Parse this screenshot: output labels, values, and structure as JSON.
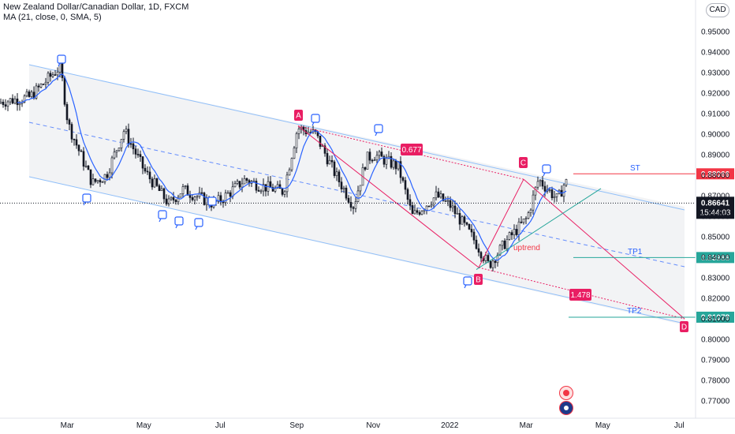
{
  "header": {
    "symbol_line": "New Zealand Dollar/Canadian Dollar, 1D, FXCM",
    "ma_line": "MA (21, close, 0, SMA, 5)"
  },
  "currency_button": "CAD",
  "price_axis": {
    "ticks": [
      "0.95000",
      "0.94000",
      "0.93000",
      "0.92000",
      "0.91000",
      "0.90000",
      "0.89000",
      "0.88000",
      "0.87000",
      "0.86000",
      "0.85000",
      "0.84000",
      "0.83000",
      "0.82000",
      "0.81000",
      "0.80000",
      "0.79000",
      "0.78000",
      "0.77000"
    ],
    "current_price": "0.86641",
    "countdown": "15:44:03",
    "st_price": "0.88066",
    "tp1_price": "0.83986",
    "tp2_price": "0.81078"
  },
  "time_axis": {
    "labels": [
      "Mar",
      "May",
      "Jul",
      "Sep",
      "Nov",
      "2022",
      "Mar",
      "May",
      "Jul"
    ]
  },
  "annotations": {
    "point_a": "A",
    "point_b": "B",
    "point_c": "C",
    "point_d": "D",
    "ratio_ab": "0.677",
    "ratio_bd": "1.478",
    "st_label": "ST",
    "tp1_label": "TP1",
    "tp2_label": "TP2",
    "uptrend_label": "uptrend"
  },
  "colors": {
    "up": "#131722",
    "ma": "#2962ff",
    "pattern": "#e91e63",
    "channel": "#90bff9",
    "target": "#26a69a",
    "stop": "#f23645",
    "uptrend_line": "#26a69a"
  },
  "chart_data": {
    "type": "candlestick",
    "title": "New Zealand Dollar/Canadian Dollar, 1D, FXCM",
    "ylim": [
      0.765,
      0.963
    ],
    "x_labels": [
      "Mar",
      "May",
      "Jul",
      "Sep",
      "Nov",
      "2022",
      "Mar",
      "May",
      "Jul"
    ],
    "close_path": [
      {
        "date": "2021-01",
        "close": 0.915
      },
      {
        "date": "2021-02",
        "close": 0.918
      },
      {
        "date": "2021-02-25",
        "close": 0.933
      },
      {
        "date": "2021-03",
        "close": 0.905
      },
      {
        "date": "2021-03-20",
        "close": 0.876
      },
      {
        "date": "2021-04",
        "close": 0.88
      },
      {
        "date": "2021-04-15",
        "close": 0.902
      },
      {
        "date": "2021-05",
        "close": 0.882
      },
      {
        "date": "2021-05-20",
        "close": 0.866
      },
      {
        "date": "2021-06",
        "close": 0.873
      },
      {
        "date": "2021-06-25",
        "close": 0.866
      },
      {
        "date": "2021-07",
        "close": 0.868
      },
      {
        "date": "2021-07-20",
        "close": 0.878
      },
      {
        "date": "2021-08",
        "close": 0.875
      },
      {
        "date": "2021-08-20",
        "close": 0.872
      },
      {
        "date": "2021-09",
        "close": 0.903
      },
      {
        "date": "2021-09-15",
        "close": 0.9
      },
      {
        "date": "2021-10",
        "close": 0.88
      },
      {
        "date": "2021-10-15",
        "close": 0.865
      },
      {
        "date": "2021-10-25",
        "close": 0.888
      },
      {
        "date": "2021-11",
        "close": 0.89
      },
      {
        "date": "2021-11-20",
        "close": 0.884
      },
      {
        "date": "2021-12",
        "close": 0.86
      },
      {
        "date": "2021-12-20",
        "close": 0.87
      },
      {
        "date": "2022-01",
        "close": 0.865
      },
      {
        "date": "2022-01-20",
        "close": 0.848
      },
      {
        "date": "2022-02",
        "close": 0.836
      },
      {
        "date": "2022-02-15",
        "close": 0.848
      },
      {
        "date": "2022-03",
        "close": 0.859
      },
      {
        "date": "2022-03-10",
        "close": 0.878
      },
      {
        "date": "2022-03-25",
        "close": 0.868
      },
      {
        "date": "2022-04",
        "close": 0.877
      },
      {
        "date": "2022-04-15",
        "close": 0.866
      }
    ],
    "pattern_points": [
      {
        "label": "A",
        "price": 0.904
      },
      {
        "label": "B",
        "price": 0.835
      },
      {
        "label": "C",
        "price": 0.878
      },
      {
        "label": "D",
        "price": 0.81
      }
    ],
    "levels": [
      {
        "label": "ST",
        "price": 0.88066
      },
      {
        "label": "TP1",
        "price": 0.83986
      },
      {
        "label": "TP2",
        "price": 0.81078
      }
    ],
    "current": 0.86641
  }
}
